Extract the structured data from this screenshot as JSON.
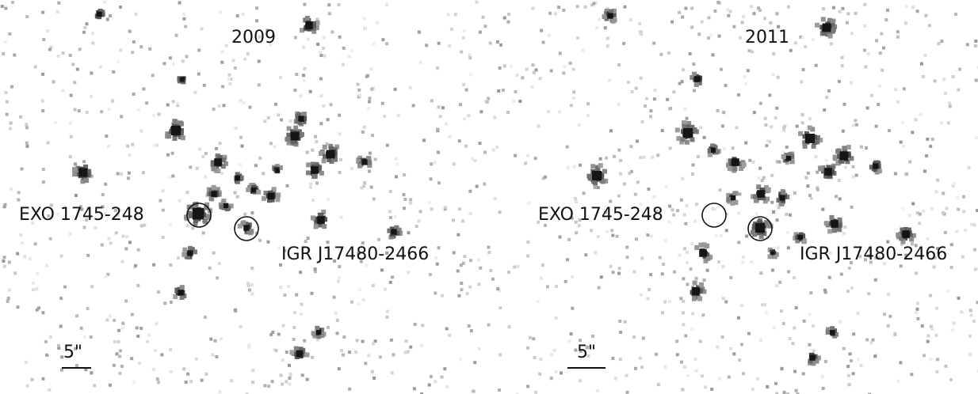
{
  "panels": [
    {
      "title": "2009",
      "source_a": "EXO 1745-248",
      "source_b": "IGR J17480-2466",
      "scale": "5\""
    },
    {
      "title": "2011",
      "source_a": "EXO 1745-248",
      "source_b": "IGR J17480-2466",
      "scale": "5\""
    }
  ]
}
